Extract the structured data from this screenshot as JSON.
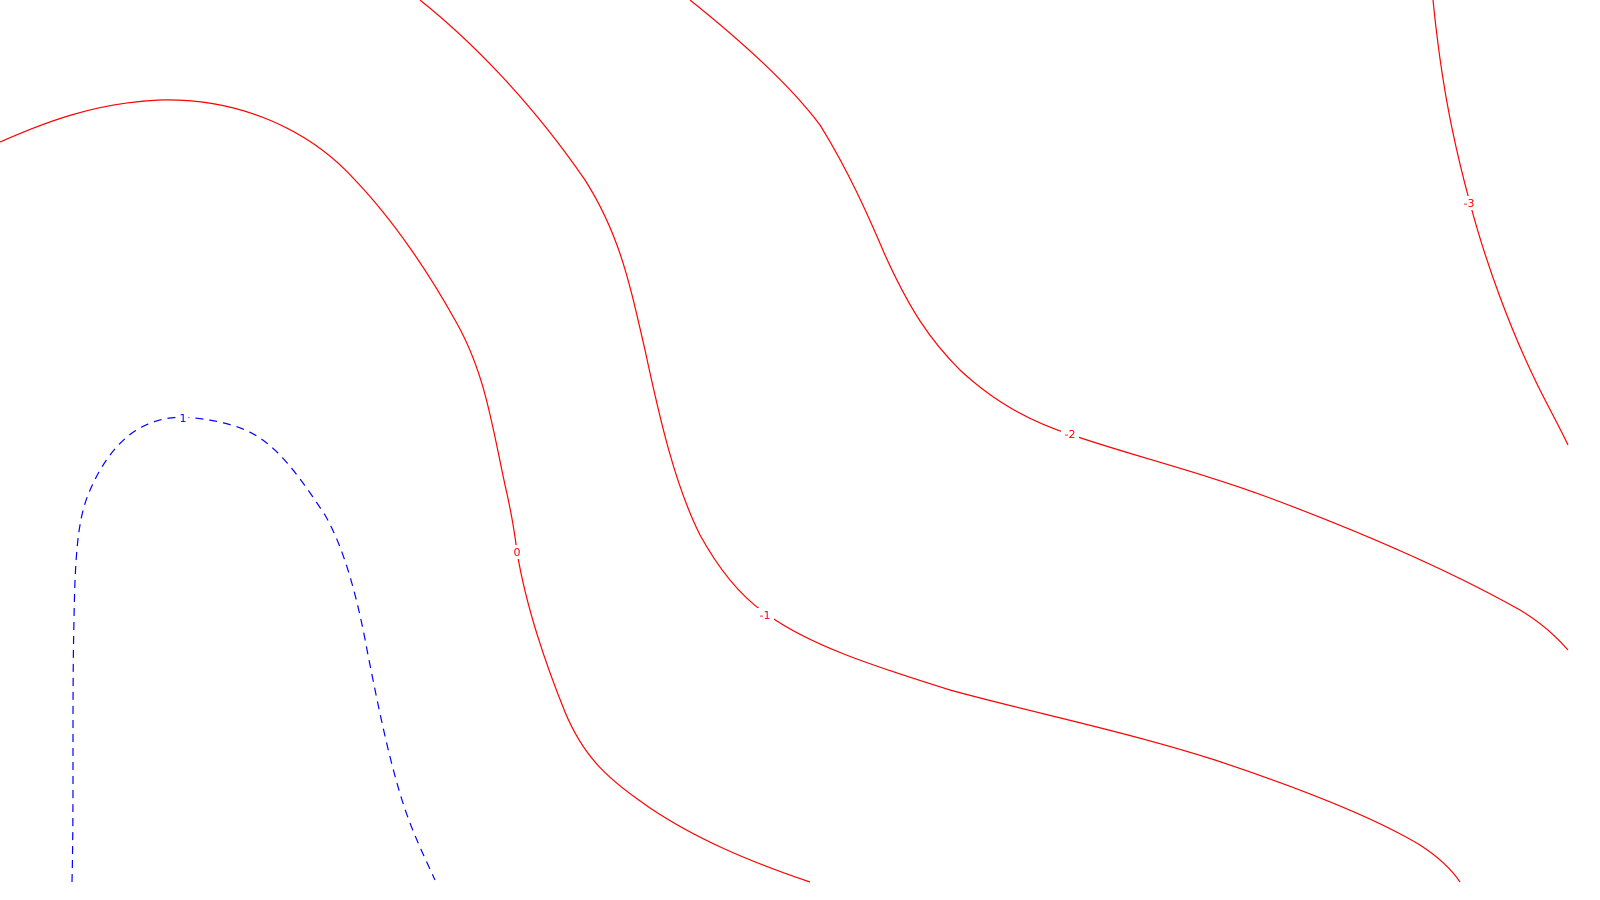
{
  "chart_data": {
    "type": "contour",
    "levels": [
      {
        "level": 1,
        "label": "1",
        "color": "#0000ff",
        "dashed": true
      },
      {
        "level": 0,
        "label": "0",
        "color": "#ff0000",
        "dashed": false
      },
      {
        "level": -1,
        "label": "-1",
        "color": "#ff0000",
        "dashed": false
      },
      {
        "level": -2,
        "label": "-2",
        "color": "#ff0000",
        "dashed": false
      },
      {
        "level": -3,
        "label": "-3",
        "color": "#ff0000",
        "dashed": false
      }
    ],
    "grid": false,
    "legend": false
  }
}
